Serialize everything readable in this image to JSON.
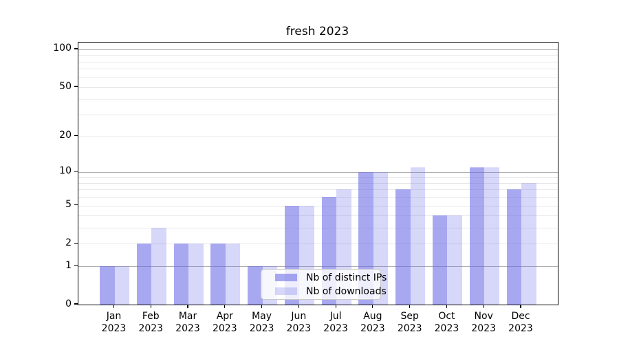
{
  "title": "fresh 2023",
  "colors": {
    "bar_ips": "rgba(102,102,230,0.57)",
    "bar_downloads": "rgba(102,102,230,0.26)",
    "grid_major": "#b0b0b0",
    "grid_minor": "#e8e8e8",
    "spine": "#000000",
    "legend_border": "#c9c9c9",
    "legend_bg": "rgba(255,255,255,0.8)"
  },
  "legend": {
    "items": [
      {
        "label": "Nb of distinct IPs",
        "color_key": "bar_ips"
      },
      {
        "label": "Nb of downloads",
        "color_key": "bar_downloads"
      }
    ]
  },
  "y_axis": {
    "tick_values": [
      100,
      50,
      20,
      10,
      5,
      2,
      1,
      0
    ],
    "tick_labels": [
      "100",
      "50",
      "20",
      "10",
      "5",
      "2",
      "1",
      "0"
    ],
    "minor_grid_values": [
      2,
      3,
      4,
      6,
      7,
      8,
      9,
      20,
      30,
      40,
      60,
      70,
      80,
      90
    ],
    "light_labeled_grid_values": [
      2,
      5,
      20,
      50
    ],
    "major_grid_values": [
      1,
      10,
      100
    ]
  },
  "x_axis": {
    "year": "2023",
    "months": [
      "Jan",
      "Feb",
      "Mar",
      "Apr",
      "May",
      "Jun",
      "Jul",
      "Aug",
      "Sep",
      "Oct",
      "Nov",
      "Dec"
    ]
  },
  "chart_data": {
    "type": "bar",
    "title": "fresh 2023",
    "categories": [
      "Jan 2023",
      "Feb 2023",
      "Mar 2023",
      "Apr 2023",
      "May 2023",
      "Jun 2023",
      "Jul 2023",
      "Aug 2023",
      "Sep 2023",
      "Oct 2023",
      "Nov 2023",
      "Dec 2023"
    ],
    "series": [
      {
        "name": "Nb of distinct IPs",
        "values": [
          1,
          2,
          2,
          2,
          1,
          5,
          6,
          10,
          7,
          4,
          11,
          7
        ]
      },
      {
        "name": "Nb of downloads",
        "values": [
          1,
          3,
          2,
          2,
          1,
          5,
          7,
          10,
          11,
          4,
          11,
          8
        ]
      }
    ],
    "xlabel": "",
    "ylabel": "",
    "yscale": "log1p",
    "ylim": [
      0,
      113
    ],
    "ytick_values": [
      0,
      1,
      2,
      5,
      10,
      20,
      50,
      100
    ],
    "grid": "horizontal",
    "legend_position": "lower center-left"
  }
}
